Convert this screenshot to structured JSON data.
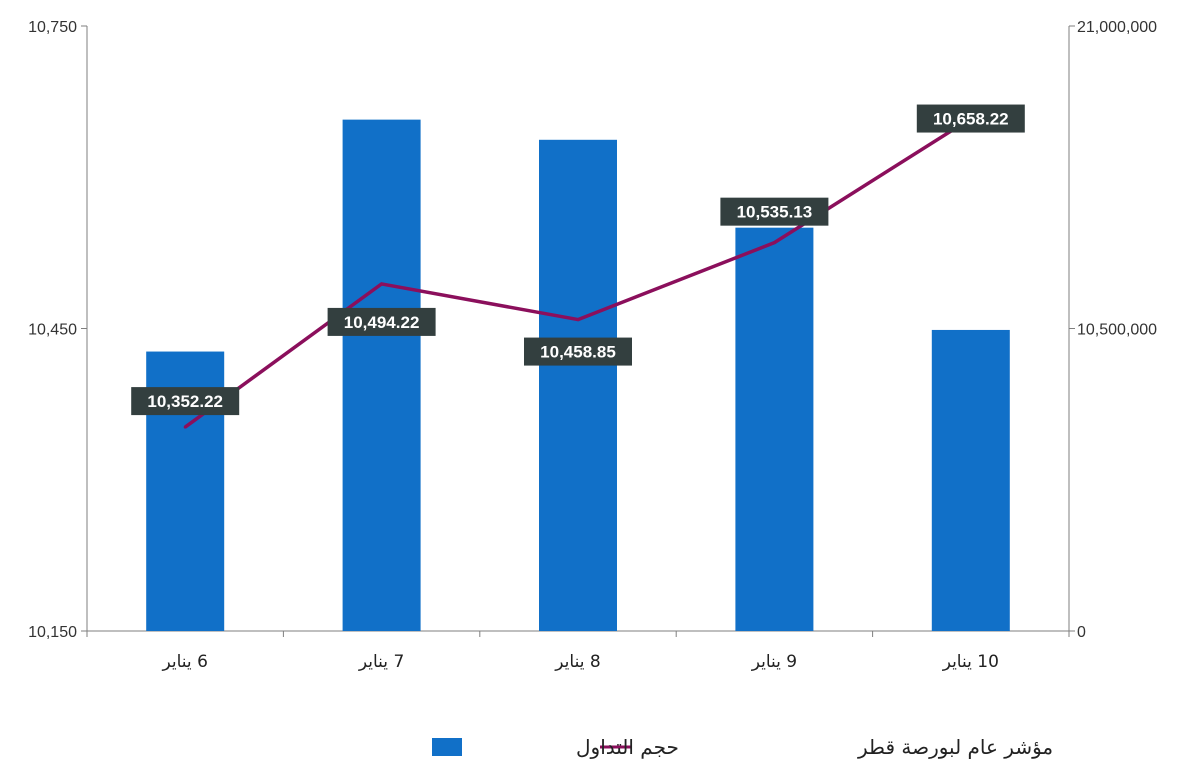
{
  "chart_data": {
    "type": "bar",
    "categories": [
      "6 يناير",
      "7 يناير",
      "8 يناير",
      "9 يناير",
      "10 يناير"
    ],
    "series": [
      {
        "name": "حجم التداول",
        "type": "bar",
        "axis": "right",
        "color": "#1170C8",
        "values": [
          9700000,
          17750000,
          17050000,
          14000000,
          10450000
        ]
      },
      {
        "name": "مؤشر عام لبورصة قطر",
        "type": "line",
        "axis": "left",
        "color": "#8B0F5C",
        "values": [
          10352.22,
          10494.22,
          10458.85,
          10535.13,
          10658.22
        ],
        "labels": [
          "10,352.22",
          "10,494.22",
          "10,458.85",
          "10,535.13",
          "10,658.22"
        ]
      }
    ],
    "y_left": {
      "ylim": [
        10150,
        10750
      ],
      "ticks": [
        "10,150",
        "10,450",
        "10,750"
      ]
    },
    "y_right": {
      "ylim": [
        0,
        21000000
      ],
      "ticks": [
        "0",
        "10,500,000",
        "21,000,000"
      ]
    },
    "legend_position": "bottom",
    "grid": false,
    "label_box_color": "#333F3F"
  }
}
